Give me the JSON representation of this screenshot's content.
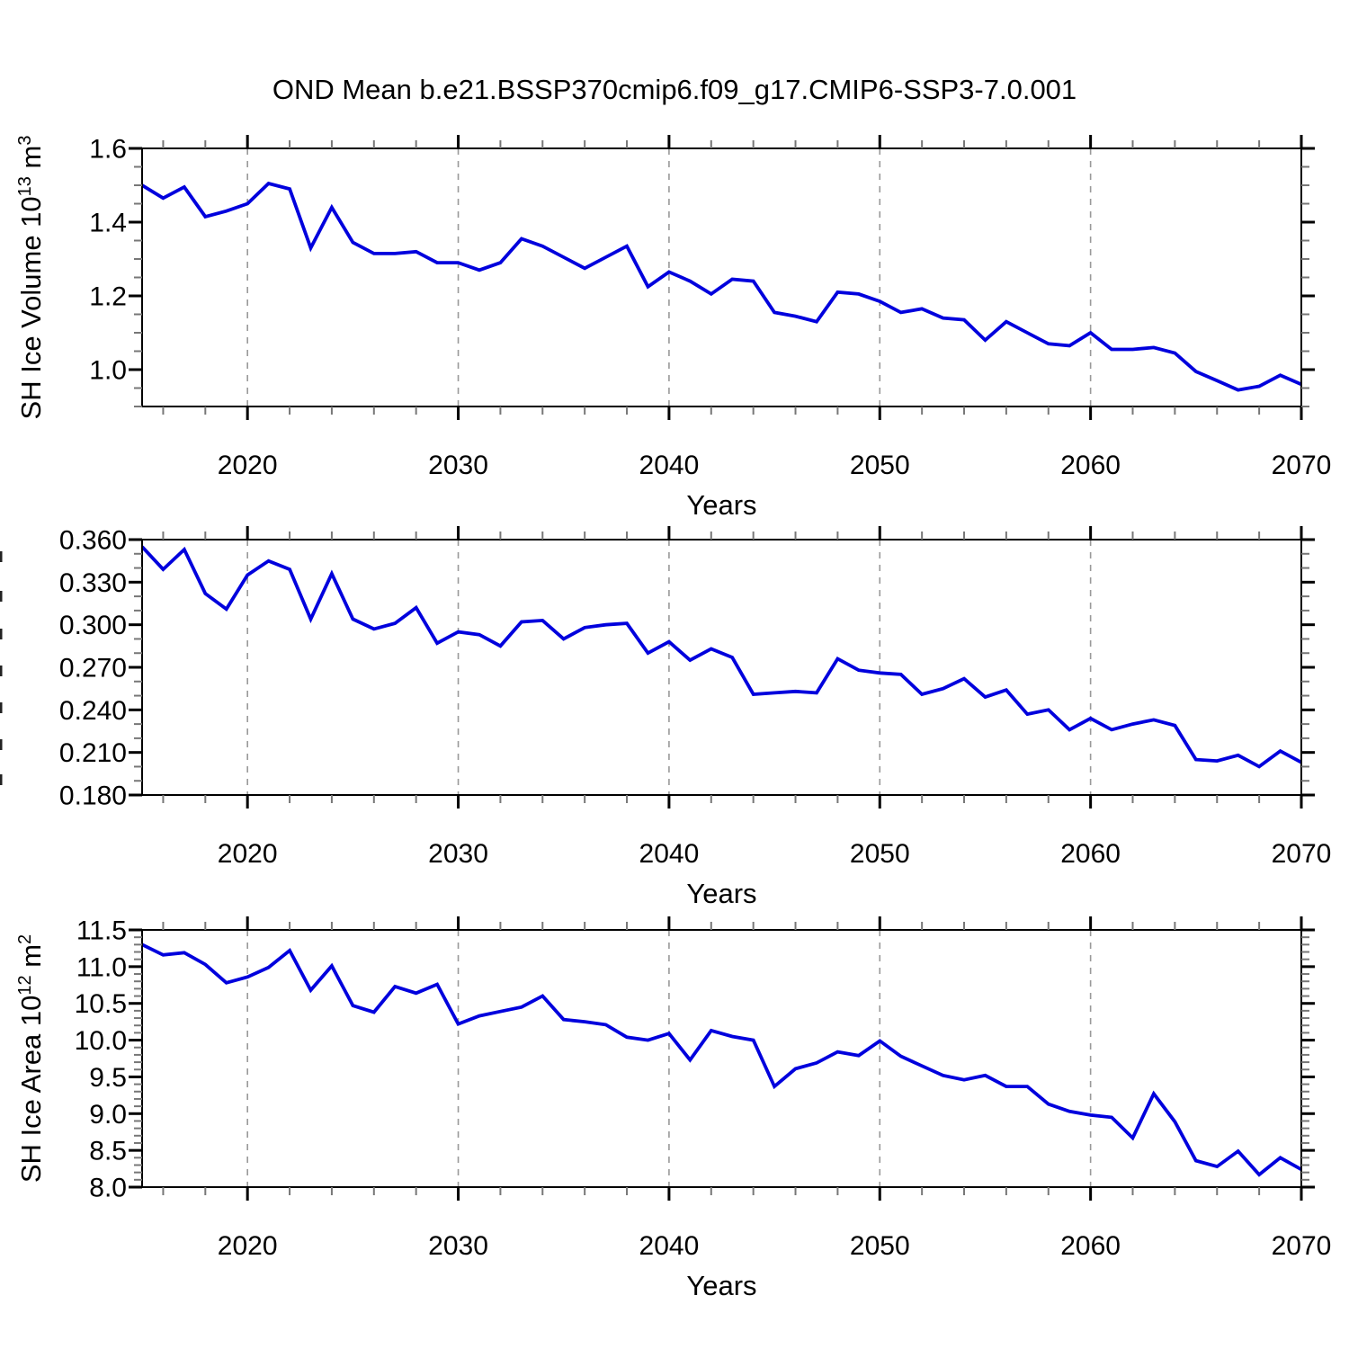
{
  "title": "OND Mean b.e21.BSSP370cmip6.f09_g17.CMIP6-SSP3-7.0.001",
  "colors": {
    "line": "#0000dd",
    "grid": "#999999",
    "axis": "#000000",
    "minor_tick": "#777777"
  },
  "x_axis": {
    "label": "Years",
    "range": [
      2015,
      2070
    ],
    "major_ticks": [
      2020,
      2030,
      2040,
      2050,
      2060,
      2070
    ],
    "major_tick_labels": [
      "2020",
      "2030",
      "2040",
      "2050",
      "2060",
      "2070"
    ],
    "minor_step": 2
  },
  "chart_data": [
    {
      "type": "line",
      "name": "sh-ice-volume",
      "ylabel_parts": [
        [
          "SH Ice Volume 10",
          0
        ],
        [
          "13",
          1
        ],
        [
          " m",
          0
        ],
        [
          "3",
          1
        ]
      ],
      "ylabel_clipped": false,
      "ylim": [
        0.9,
        1.6
      ],
      "yticks": [
        1.0,
        1.2,
        1.4,
        1.6
      ],
      "ytick_labels": [
        "1.0",
        "1.2",
        "1.4",
        "1.6"
      ],
      "y_minor_step": 0.05,
      "grid": "vertical-dashed",
      "legend": "none",
      "x": [
        2015,
        2016,
        2017,
        2018,
        2019,
        2020,
        2021,
        2022,
        2023,
        2024,
        2025,
        2026,
        2027,
        2028,
        2029,
        2030,
        2031,
        2032,
        2033,
        2034,
        2035,
        2036,
        2037,
        2038,
        2039,
        2040,
        2041,
        2042,
        2043,
        2044,
        2045,
        2046,
        2047,
        2048,
        2049,
        2050,
        2051,
        2052,
        2053,
        2054,
        2055,
        2056,
        2057,
        2058,
        2059,
        2060,
        2061,
        2062,
        2063,
        2064,
        2065,
        2066,
        2067,
        2068,
        2069,
        2070
      ],
      "values": [
        1.5,
        1.465,
        1.495,
        1.415,
        1.43,
        1.45,
        1.505,
        1.49,
        1.33,
        1.44,
        1.345,
        1.315,
        1.315,
        1.32,
        1.29,
        1.29,
        1.27,
        1.29,
        1.355,
        1.335,
        1.305,
        1.275,
        1.305,
        1.335,
        1.225,
        1.265,
        1.24,
        1.205,
        1.245,
        1.24,
        1.155,
        1.145,
        1.13,
        1.21,
        1.205,
        1.185,
        1.155,
        1.165,
        1.14,
        1.135,
        1.08,
        1.13,
        1.1,
        1.07,
        1.065,
        1.1,
        1.055,
        1.055,
        1.06,
        1.045,
        0.995,
        0.97,
        0.945,
        0.955,
        0.985,
        0.96
      ]
    },
    {
      "type": "line",
      "name": "sh-ice-middle-panel",
      "ylabel_parts": [],
      "ylabel_clipped": true,
      "ylim": [
        0.18,
        0.36
      ],
      "yticks": [
        0.18,
        0.21,
        0.24,
        0.27,
        0.3,
        0.33,
        0.36
      ],
      "ytick_labels": [
        "0.180",
        "0.210",
        "0.240",
        "0.270",
        "0.300",
        "0.330",
        "0.360"
      ],
      "y_minor_step": 0.01,
      "grid": "vertical-dashed",
      "legend": "none",
      "x": [
        2015,
        2016,
        2017,
        2018,
        2019,
        2020,
        2021,
        2022,
        2023,
        2024,
        2025,
        2026,
        2027,
        2028,
        2029,
        2030,
        2031,
        2032,
        2033,
        2034,
        2035,
        2036,
        2037,
        2038,
        2039,
        2040,
        2041,
        2042,
        2043,
        2044,
        2045,
        2046,
        2047,
        2048,
        2049,
        2050,
        2051,
        2052,
        2053,
        2054,
        2055,
        2056,
        2057,
        2058,
        2059,
        2060,
        2061,
        2062,
        2063,
        2064,
        2065,
        2066,
        2067,
        2068,
        2069,
        2070
      ],
      "values": [
        0.355,
        0.339,
        0.353,
        0.322,
        0.311,
        0.335,
        0.345,
        0.339,
        0.304,
        0.336,
        0.304,
        0.297,
        0.301,
        0.312,
        0.287,
        0.295,
        0.293,
        0.285,
        0.302,
        0.303,
        0.29,
        0.298,
        0.3,
        0.301,
        0.28,
        0.288,
        0.275,
        0.283,
        0.277,
        0.251,
        0.252,
        0.253,
        0.252,
        0.276,
        0.268,
        0.266,
        0.265,
        0.251,
        0.255,
        0.262,
        0.249,
        0.254,
        0.237,
        0.24,
        0.226,
        0.234,
        0.226,
        0.23,
        0.233,
        0.229,
        0.205,
        0.204,
        0.208,
        0.2,
        0.211,
        0.203
      ]
    },
    {
      "type": "line",
      "name": "sh-ice-area",
      "ylabel_parts": [
        [
          "SH Ice Area 10",
          0
        ],
        [
          "12",
          1
        ],
        [
          " m",
          0
        ],
        [
          "2",
          1
        ]
      ],
      "ylabel_clipped": false,
      "ylim": [
        8.0,
        11.5
      ],
      "yticks": [
        8.0,
        8.5,
        9.0,
        9.5,
        10.0,
        10.5,
        11.0,
        11.5
      ],
      "ytick_labels": [
        "8.0",
        "8.5",
        "9.0",
        "9.5",
        "10.0",
        "10.5",
        "11.0",
        "11.5"
      ],
      "y_minor_step": 0.1,
      "grid": "vertical-dashed",
      "legend": "none",
      "x": [
        2015,
        2016,
        2017,
        2018,
        2019,
        2020,
        2021,
        2022,
        2023,
        2024,
        2025,
        2026,
        2027,
        2028,
        2029,
        2030,
        2031,
        2032,
        2033,
        2034,
        2035,
        2036,
        2037,
        2038,
        2039,
        2040,
        2041,
        2042,
        2043,
        2044,
        2045,
        2046,
        2047,
        2048,
        2049,
        2050,
        2051,
        2052,
        2053,
        2054,
        2055,
        2056,
        2057,
        2058,
        2059,
        2060,
        2061,
        2062,
        2063,
        2064,
        2065,
        2066,
        2067,
        2068,
        2069,
        2070
      ],
      "values": [
        11.3,
        11.16,
        11.19,
        11.03,
        10.78,
        10.86,
        10.99,
        11.22,
        10.68,
        11.01,
        10.47,
        10.38,
        10.73,
        10.64,
        10.76,
        10.22,
        10.33,
        10.39,
        10.45,
        10.6,
        10.28,
        10.25,
        10.21,
        10.04,
        10.0,
        10.09,
        9.73,
        10.13,
        10.05,
        10.0,
        9.37,
        9.61,
        9.69,
        9.84,
        9.79,
        9.99,
        9.78,
        9.65,
        9.52,
        9.46,
        9.52,
        9.37,
        9.37,
        9.13,
        9.03,
        8.98,
        8.95,
        8.67,
        9.27,
        8.89,
        8.36,
        8.28,
        8.49,
        8.17,
        8.4,
        8.24
      ]
    }
  ]
}
